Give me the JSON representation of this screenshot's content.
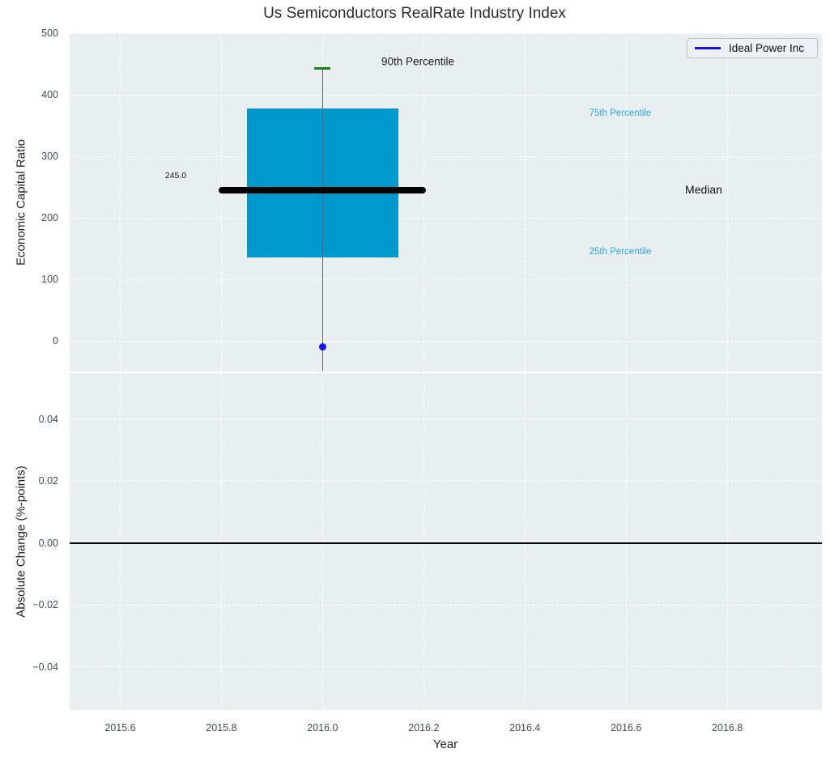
{
  "title": "Us Semiconductors RealRate Industry Index",
  "axes": {
    "top": {
      "ylabel": "Economic Capital Ratio",
      "yticks": {
        "values": [
          500,
          400,
          300,
          200,
          100,
          0
        ],
        "labels": [
          "500",
          "400",
          "300",
          "200",
          "100",
          "0"
        ]
      },
      "annotations": {
        "p90": "90th Percentile",
        "p75": "75th Percentile",
        "median": "Median",
        "p25": "25th Percentile",
        "median_value": "245.0"
      },
      "legend": {
        "label": "Ideal Power Inc"
      }
    },
    "bottom": {
      "ylabel": "Absolute Change (%-points)",
      "xlabel": "Year",
      "yticks": {
        "values": [
          0.04,
          0.02,
          0,
          -0.02,
          -0.04
        ],
        "labels": [
          "0.04",
          "0.02",
          "0.00",
          "−0.02",
          "−0.04"
        ]
      }
    },
    "xticks": {
      "values": [
        2015.6,
        2015.8,
        2016.0,
        2016.2,
        2016.4,
        2016.6,
        2016.8
      ],
      "labels": [
        "2015.6",
        "2015.8",
        "2016.0",
        "2016.2",
        "2016.4",
        "2016.6",
        "2016.8"
      ]
    }
  },
  "chart_data": [
    {
      "type": "boxplot",
      "title": "Us Semiconductors RealRate Industry Index",
      "ylabel": "Economic Capital Ratio",
      "xlabel": "Year",
      "xlim": [
        2015.5,
        2016.987
      ],
      "ylim": [
        -50,
        500
      ],
      "grid": true,
      "x": 2016.0,
      "box_width": 0.3,
      "stats": {
        "p90": 443,
        "q3": 377,
        "median": 245,
        "q1": 135,
        "whisker_low_clipped_below_axis": true
      },
      "median_line": {
        "value": 245,
        "span": [
          2015.795,
          2016.205
        ],
        "label": "245.0"
      },
      "series": [
        {
          "name": "Ideal Power Inc",
          "type": "scatter",
          "x": [
            2016.0
          ],
          "y": [
            -10
          ],
          "color": "#1414e6"
        }
      ],
      "legend_position": "upper right"
    },
    {
      "type": "line",
      "ylabel": "Absolute Change (%-points)",
      "xlabel": "Year",
      "xlim": [
        2015.5,
        2016.987
      ],
      "ylim": [
        -0.0539,
        0.0549
      ],
      "grid": true,
      "zero_line": 0
    }
  ],
  "colors": {
    "box_fill": "#0099cd",
    "percentile_label": "#2fa7df",
    "whisker_cap_green": "#1a801a",
    "whisker_line": "#666666",
    "median_line": "#000000",
    "point_blue": "#1414e6",
    "zero_line": "#000000",
    "axes_background": "#e9eef0",
    "grid": "#ffffff",
    "tick_label": "#3e4e60"
  }
}
